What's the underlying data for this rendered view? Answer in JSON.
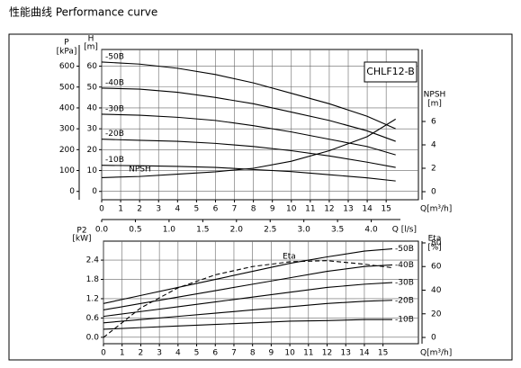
{
  "title": "性能曲线  Performance curve",
  "chart_data": [
    {
      "type": "line",
      "model": "CHLF12-B",
      "xlabel": "Q[m³/h]",
      "ylabel": [
        "H",
        "[m]"
      ],
      "y2label": [
        "NPSH",
        "[m]"
      ],
      "x": [
        0,
        2,
        4,
        6,
        8,
        10,
        12,
        14,
        15.5
      ],
      "xlim": [
        0,
        16.7
      ],
      "xticks": [
        0,
        1,
        2,
        3,
        4,
        5,
        6,
        7,
        8,
        9,
        10,
        11,
        12,
        13,
        14,
        15
      ],
      "ylim": [
        -4,
        68
      ],
      "yticks": [
        0,
        10,
        20,
        30,
        40,
        50,
        60
      ],
      "y2lim": [
        -0.69,
        12.15
      ],
      "y2ticks": [
        0,
        2,
        4,
        6
      ],
      "plabel": [
        "P",
        "[kPa]"
      ],
      "plim": [
        -40,
        680
      ],
      "pticks": [
        0,
        100,
        200,
        300,
        400,
        500,
        600
      ],
      "x2label": "Q [l/s]",
      "x2lim": [
        0,
        4.7
      ],
      "x2ticks": [
        {
          "value": 0,
          "label": "0.0"
        },
        0.5,
        {
          "value": 1,
          "label": "1.0"
        },
        1.5,
        {
          "value": 2,
          "label": "2.0"
        },
        2.5,
        {
          "value": 3,
          "label": "3.0"
        },
        3.5,
        {
          "value": 4,
          "label": "4.0"
        }
      ],
      "grid": true,
      "label_side": "left",
      "series": [
        {
          "name": "-50B",
          "color": "#000000",
          "values": [
            62,
            61,
            59,
            56,
            52,
            47,
            42,
            36,
            30
          ]
        },
        {
          "name": "-40B",
          "color": "#000000",
          "values": [
            49.5,
            49,
            47.5,
            45,
            42,
            38,
            34,
            29,
            24
          ]
        },
        {
          "name": "-30B",
          "color": "#000000",
          "values": [
            37,
            36.5,
            35.5,
            34,
            31.5,
            28.5,
            25,
            21.5,
            17.5
          ]
        },
        {
          "name": "-20B",
          "color": "#000000",
          "values": [
            25,
            24.5,
            24,
            23,
            21.5,
            19.5,
            17,
            14,
            11.5
          ]
        },
        {
          "name": "-10B",
          "color": "#000000",
          "values": [
            12.5,
            12.3,
            12,
            11.5,
            10.5,
            9.5,
            8,
            6.5,
            5
          ]
        },
        {
          "name": "NPSH",
          "color": "#000000",
          "axis": "y2",
          "values": [
            1.2,
            1.3,
            1.5,
            1.7,
            2,
            2.6,
            3.5,
            4.7,
            6.2
          ]
        }
      ]
    },
    {
      "type": "line",
      "xlabel": "Q[m³/h]",
      "ylabel": [
        "P2",
        "[kW]"
      ],
      "y2label": [
        "Eta",
        "[%]"
      ],
      "x": [
        0,
        2,
        4,
        6,
        8,
        10,
        12,
        14,
        15.5
      ],
      "xlim": [
        0,
        16.9
      ],
      "xticks": [
        0,
        1,
        2,
        3,
        4,
        5,
        6,
        7,
        8,
        9,
        10,
        11,
        12,
        13,
        14,
        15
      ],
      "ylim": [
        -0.2,
        2.99
      ],
      "yticks": [
        {
          "value": 0,
          "label": "0.0"
        },
        0.6,
        1.2,
        1.8,
        2.4
      ],
      "y2lim": [
        -5.3,
        81.5
      ],
      "y2ticks": [
        0,
        20,
        40,
        60,
        80
      ],
      "grid": true,
      "label_side": "right",
      "series": [
        {
          "name": "-50B",
          "color": "#000000",
          "values": [
            1.05,
            1.3,
            1.55,
            1.8,
            2.05,
            2.3,
            2.5,
            2.68,
            2.75
          ]
        },
        {
          "name": "-40B",
          "color": "#000000",
          "values": [
            0.85,
            1.05,
            1.25,
            1.45,
            1.65,
            1.85,
            2.05,
            2.2,
            2.25
          ]
        },
        {
          "name": "-30B",
          "color": "#000000",
          "values": [
            0.65,
            0.8,
            0.95,
            1.1,
            1.25,
            1.4,
            1.55,
            1.65,
            1.7
          ]
        },
        {
          "name": "-20B",
          "color": "#000000",
          "values": [
            0.45,
            0.55,
            0.65,
            0.75,
            0.85,
            0.95,
            1.05,
            1.12,
            1.15
          ]
        },
        {
          "name": "-10B",
          "color": "#000000",
          "values": [
            0.25,
            0.3,
            0.35,
            0.4,
            0.45,
            0.5,
            0.52,
            0.55,
            0.55
          ]
        },
        {
          "name": "Eta",
          "color": "#000000",
          "axis": "y2",
          "dashed": true,
          "values": [
            0,
            25,
            42,
            53,
            60,
            64,
            65,
            62,
            59
          ]
        }
      ]
    }
  ]
}
